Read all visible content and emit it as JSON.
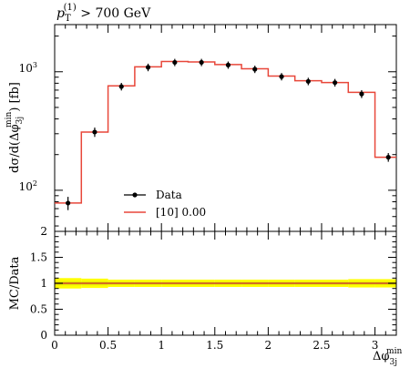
{
  "chart_data": [
    {
      "type": "line",
      "title": "p_T^(1) > 700 GeV",
      "title_parts": {
        "var": "p",
        "sub": "T",
        "sup": "(1)",
        "rest": " > 700 GeV"
      },
      "ylabel": "dσ/d(Δφ_3j^min) [fb]",
      "ylabel_parts": {
        "pre": "dσ/d(Δφ",
        "sub": "3j",
        "sup": "min",
        "post": ") [fb]"
      },
      "yscale": "log",
      "xlim": [
        0,
        3.2
      ],
      "ylim": [
        45,
        2500
      ],
      "ytick_labels": [
        {
          "value": 100,
          "base": "10",
          "exp": "2"
        },
        {
          "value": 1000,
          "base": "10",
          "exp": "3"
        }
      ],
      "bin_edges": [
        0,
        0.25,
        0.5,
        0.75,
        1.0,
        1.25,
        1.5,
        1.75,
        2.0,
        2.25,
        2.5,
        2.75,
        3.0,
        3.2
      ],
      "series": [
        {
          "name": "Data",
          "style": "points",
          "color": "#000000",
          "x": [
            0.125,
            0.375,
            0.625,
            0.875,
            1.125,
            1.375,
            1.625,
            1.875,
            2.125,
            2.375,
            2.625,
            2.875,
            3.125
          ],
          "y": [
            78,
            310,
            750,
            1090,
            1200,
            1200,
            1140,
            1050,
            910,
            830,
            810,
            650,
            190
          ],
          "yerr_lo": [
            10,
            28,
            55,
            80,
            85,
            85,
            80,
            75,
            65,
            60,
            60,
            50,
            16
          ],
          "yerr_hi": [
            10,
            28,
            55,
            80,
            85,
            85,
            80,
            75,
            65,
            60,
            60,
            50,
            16
          ]
        },
        {
          "name": "[10] 0.00",
          "style": "step",
          "color": "#e8473a",
          "y": [
            78,
            310,
            760,
            1100,
            1220,
            1210,
            1150,
            1060,
            920,
            840,
            810,
            670,
            190
          ]
        }
      ],
      "legend": {
        "placement": "lower-center"
      }
    },
    {
      "type": "line",
      "ylabel": "MC/Data",
      "xlabel": "Δφ_3j^min",
      "xlabel_parts": {
        "pre": "Δφ",
        "sub": "3j",
        "sup": "min"
      },
      "xlim": [
        0,
        3.2
      ],
      "ylim": [
        0,
        2
      ],
      "xtick_labels": [
        0,
        0.5,
        1,
        1.5,
        2,
        2.5,
        3
      ],
      "ytick_labels": [
        0,
        0.5,
        1,
        1.5,
        2
      ],
      "band": {
        "color": "#ffff00",
        "lo": [
          0.9,
          0.91,
          0.93,
          0.93,
          0.93,
          0.93,
          0.93,
          0.93,
          0.93,
          0.93,
          0.93,
          0.92,
          0.92
        ],
        "hi": [
          1.1,
          1.09,
          1.07,
          1.07,
          1.07,
          1.07,
          1.07,
          1.07,
          1.07,
          1.07,
          1.07,
          1.08,
          1.08
        ],
        "inner_color": "#d8d800",
        "inner_lo": [
          0.96,
          0.96,
          0.97,
          0.97,
          0.97,
          0.97,
          0.97,
          0.97,
          0.97,
          0.97,
          0.97,
          0.97,
          0.97
        ],
        "inner_hi": [
          1.04,
          1.04,
          1.03,
          1.03,
          1.03,
          1.03,
          1.03,
          1.03,
          1.03,
          1.03,
          1.03,
          1.03,
          1.03
        ]
      },
      "series": [
        {
          "name": "[10] 0.00",
          "style": "step",
          "color": "#e8473a",
          "y": [
            1.0,
            1.0,
            1.0,
            1.0,
            1.0,
            1.0,
            1.0,
            1.0,
            1.0,
            1.0,
            1.0,
            1.0,
            1.0
          ]
        }
      ]
    }
  ]
}
